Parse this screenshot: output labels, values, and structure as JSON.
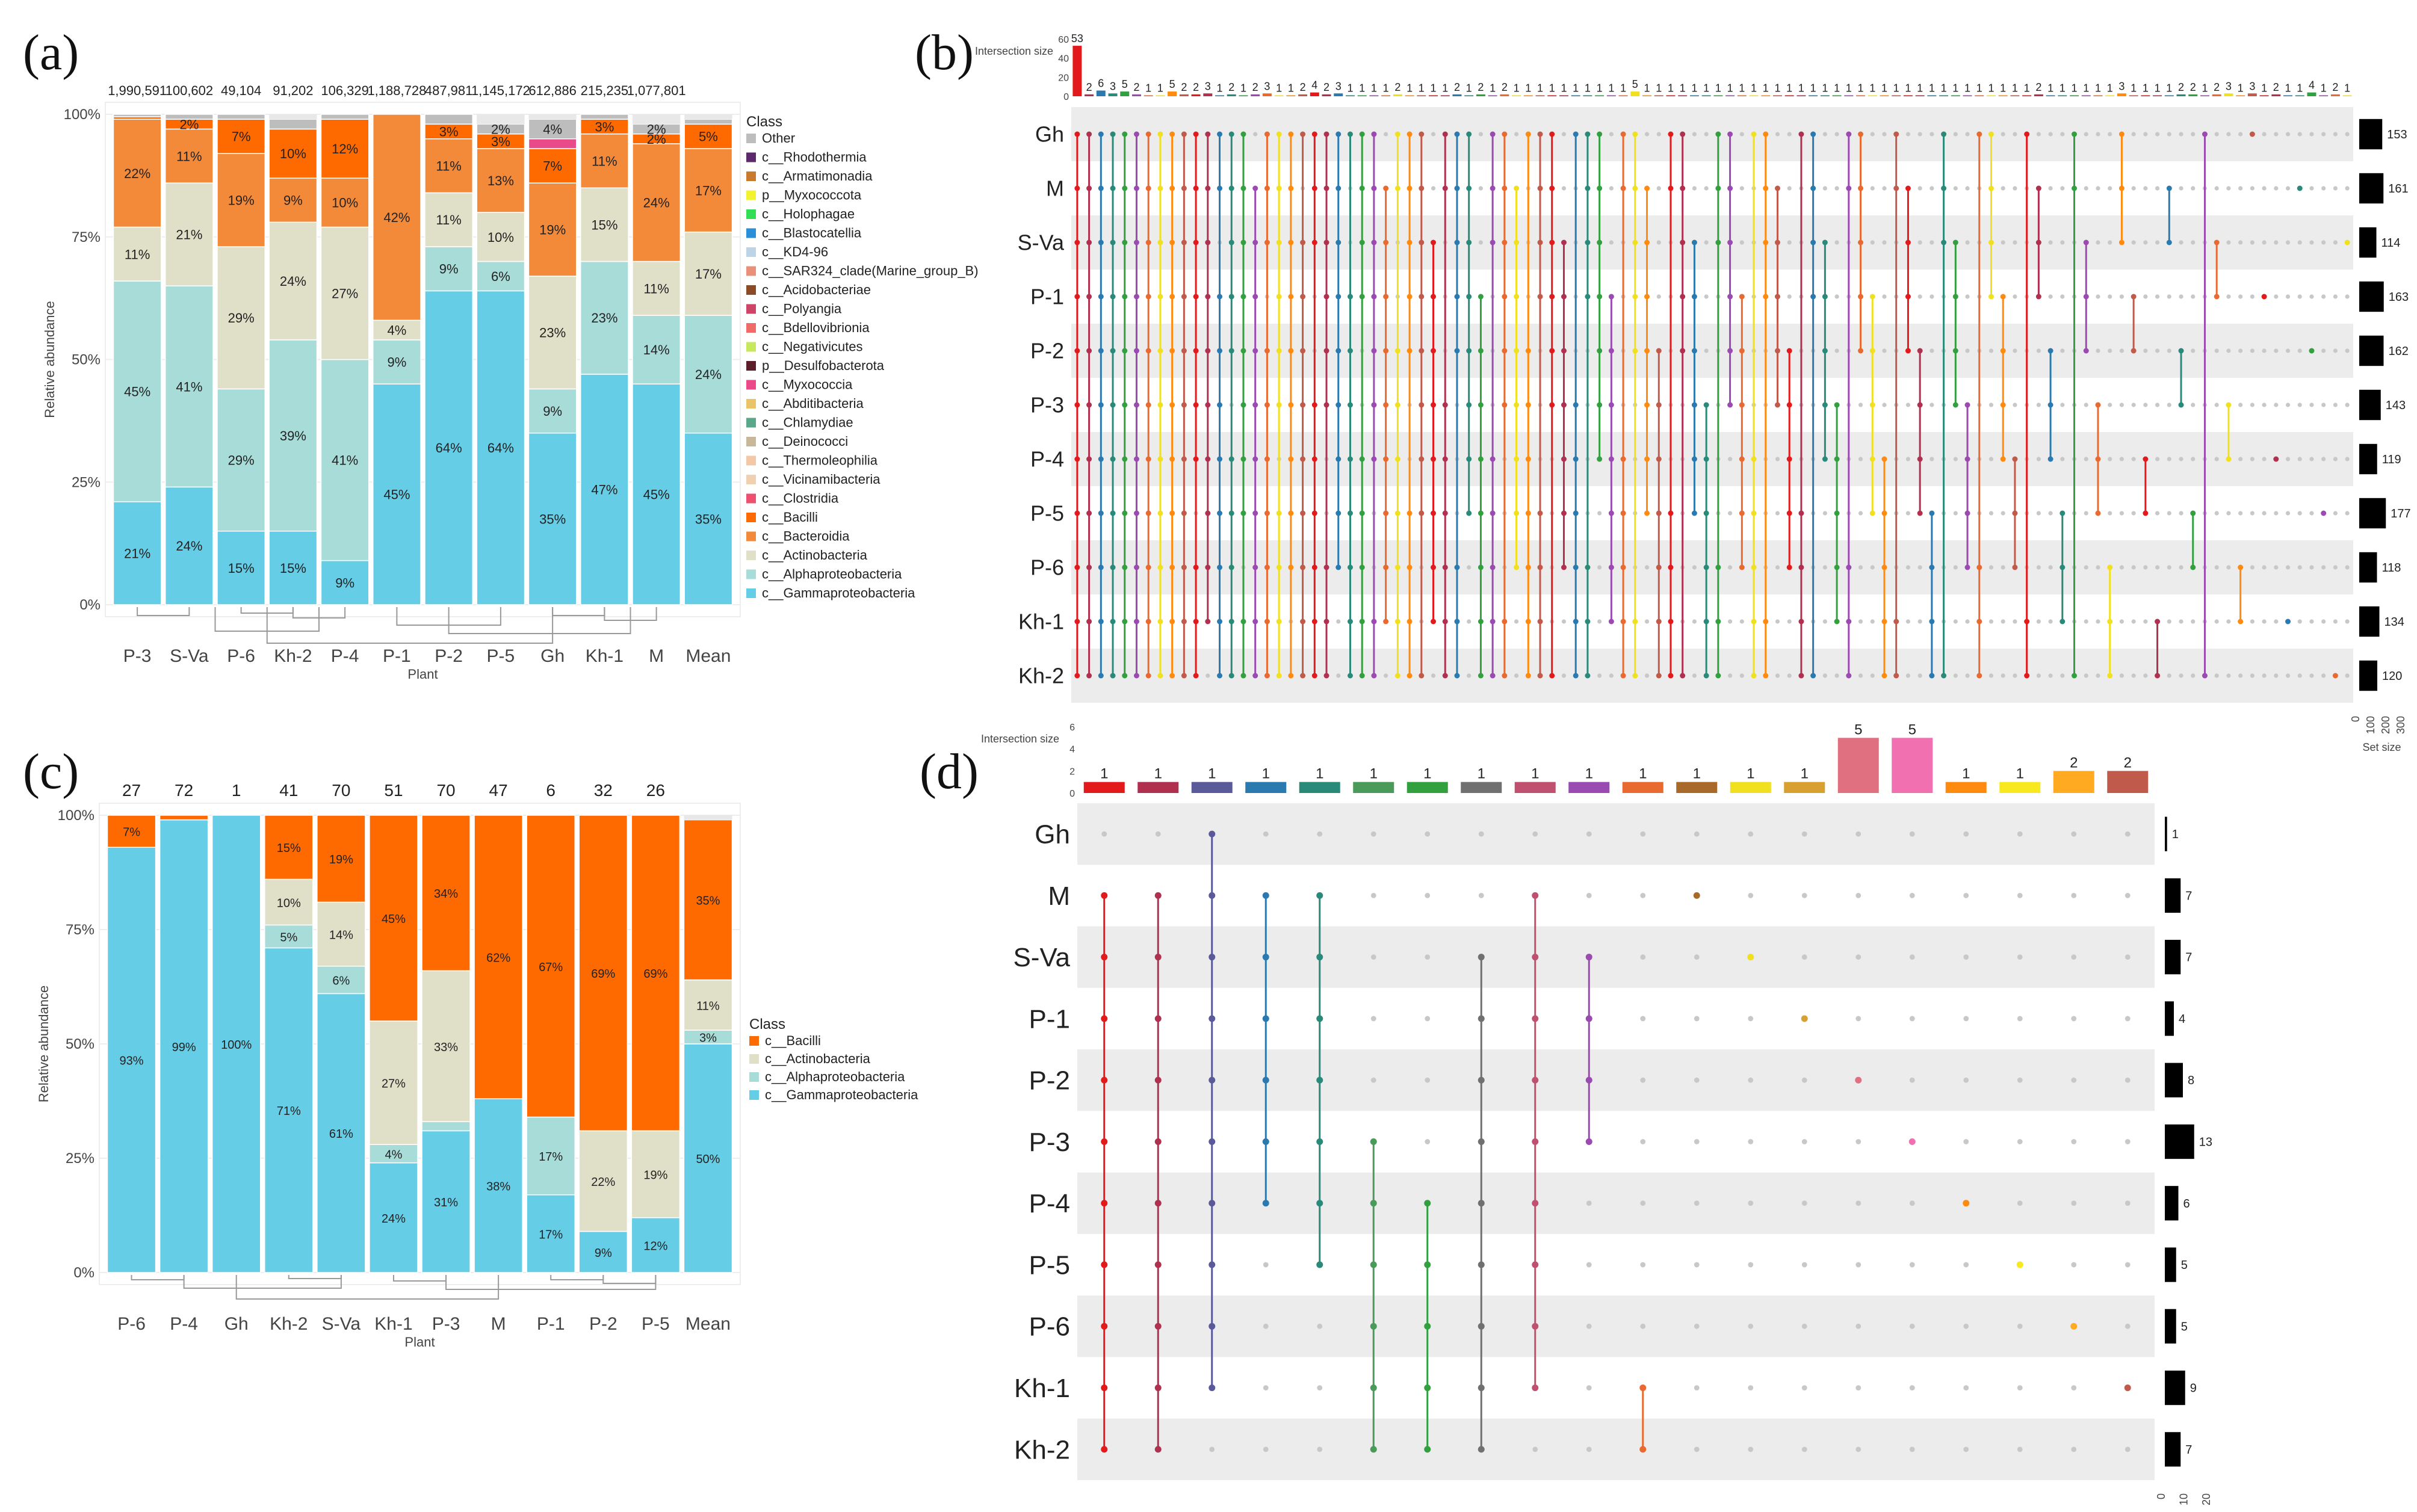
{
  "panel_labels": [
    "(a)",
    "(b)",
    "(c)",
    "(d)"
  ],
  "chart_data": [
    {
      "panel": "(a)",
      "type": "stacked-bar",
      "xlabel": "Plant",
      "ylabel": "Relative abundance",
      "y_ticks": [
        "0%",
        "25%",
        "50%",
        "75%",
        "100%"
      ],
      "legend_title": "Class",
      "legend": [
        {
          "name": "Other",
          "color": "#bdbdbd"
        },
        {
          "name": "c__Rhodothermia",
          "color": "#5a2a6b"
        },
        {
          "name": "c__Armatimonadia",
          "color": "#c87a2e"
        },
        {
          "name": "p__Myxococcota",
          "color": "#f2f230"
        },
        {
          "name": "c__Holophagae",
          "color": "#33dd55"
        },
        {
          "name": "c__Blastocatellia",
          "color": "#2b8ed6"
        },
        {
          "name": "c__KD4-96",
          "color": "#bcd4e6"
        },
        {
          "name": "c__SAR324_clade(Marine_group_B)",
          "color": "#e8907a"
        },
        {
          "name": "c__Acidobacteriae",
          "color": "#8b4a2a"
        },
        {
          "name": "c__Polyangia",
          "color": "#cc4466"
        },
        {
          "name": "c__Bdellovibrionia",
          "color": "#f06a6a"
        },
        {
          "name": "c__Negativicutes",
          "color": "#c6e85a"
        },
        {
          "name": "p__Desulfobacterota",
          "color": "#5a1f2a"
        },
        {
          "name": "c__Myxococcia",
          "color": "#e84a8a"
        },
        {
          "name": "c__Abditibacteria",
          "color": "#e8c56a"
        },
        {
          "name": "c__Chlamydiae",
          "color": "#5aa88a"
        },
        {
          "name": "c__Deinococci",
          "color": "#c8b89a"
        },
        {
          "name": "c__Thermoleophilia",
          "color": "#f2c8a8"
        },
        {
          "name": "c__Vicinamibacteria",
          "color": "#f0d0b0"
        },
        {
          "name": "c__Clostridia",
          "color": "#f05070"
        },
        {
          "name": "c__Bacilli",
          "color": "#ff6a00"
        },
        {
          "name": "c__Bacteroidia",
          "color": "#f28a3a"
        },
        {
          "name": "c__Actinobacteria",
          "color": "#e0e0c8"
        },
        {
          "name": "c__Alphaproteobacteria",
          "color": "#a8dcd8"
        },
        {
          "name": "c__Gammaproteobacteria",
          "color": "#66cde6"
        }
      ],
      "categories": [
        "P-3",
        "S-Va",
        "P-6",
        "Kh-2",
        "P-4",
        "P-1",
        "P-2",
        "P-5",
        "Gh",
        "Kh-1",
        "M",
        "Mean"
      ],
      "top_counts": [
        "1,990,591",
        "100,602",
        "49,104",
        "91,202",
        "106,329",
        "1,188,728",
        "487,981",
        "1,145,172",
        "612,886",
        "215,235",
        "1,077,801",
        ""
      ],
      "series": [
        {
          "name": "c__Gammaproteobacteria",
          "values": [
            21,
            24,
            15,
            15,
            9,
            45,
            64,
            64,
            35,
            47,
            45,
            35
          ],
          "labels": [
            "21%",
            "24%",
            "15%",
            "15%",
            "9%",
            "45%",
            "64%",
            "64%",
            "35%",
            "47%",
            "45%",
            "35%"
          ]
        },
        {
          "name": "c__Alphaproteobacteria",
          "values": [
            45,
            41,
            29,
            39,
            41,
            9,
            9,
            6,
            9,
            23,
            14,
            24
          ],
          "labels": [
            "45%",
            "41%",
            "29%",
            "39%",
            "41%",
            "9%",
            "9%",
            "6%",
            "9%",
            "23%",
            "14%",
            "24%"
          ]
        },
        {
          "name": "c__Actinobacteria",
          "values": [
            11,
            21,
            29,
            24,
            27,
            4,
            11,
            10,
            23,
            15,
            11,
            17
          ],
          "labels": [
            "11%",
            "21%",
            "29%",
            "24%",
            "27%",
            "4%",
            "11%",
            "10%",
            "23%",
            "15%",
            "11%",
            "17%"
          ]
        },
        {
          "name": "c__Bacteroidia",
          "values": [
            22,
            11,
            19,
            9,
            10,
            42,
            11,
            13,
            19,
            11,
            24,
            17
          ],
          "labels": [
            "22%",
            "11%",
            "19%",
            "9%",
            "10%",
            "42%",
            "11%",
            "13%",
            "19%",
            "11%",
            "24%",
            "17%"
          ]
        },
        {
          "name": "c__Bacilli",
          "values": [
            0.5,
            2,
            7,
            10,
            12,
            0.5,
            3,
            3,
            7,
            3,
            2,
            5
          ],
          "labels": [
            "",
            "2%",
            "7%",
            "10%",
            "12%",
            "",
            "3%",
            "3%",
            "7%",
            "3%",
            "2%",
            "5%"
          ]
        },
        {
          "name": "c__Myxococcia",
          "values": [
            0,
            0,
            0,
            0,
            0,
            0,
            0,
            0,
            2,
            0,
            0,
            0
          ],
          "labels": [
            "",
            "",
            "",
            "",
            "",
            "",
            "",
            "",
            "",
            "",
            "",
            ""
          ]
        },
        {
          "name": "Other",
          "values": [
            0.5,
            1,
            1,
            2,
            1,
            0.5,
            2,
            2,
            4,
            1,
            2,
            1
          ],
          "labels": [
            "",
            "",
            "",
            "",
            "",
            "",
            "",
            "2%",
            "4%",
            "",
            "2%",
            ""
          ]
        }
      ]
    },
    {
      "panel": "(b)",
      "type": "upset",
      "sets": [
        "Gh",
        "M",
        "S-Va",
        "P-1",
        "P-2",
        "P-3",
        "P-4",
        "P-5",
        "P-6",
        "Kh-1",
        "Kh-2"
      ],
      "set_sizes": [
        153,
        161,
        114,
        163,
        162,
        143,
        119,
        177,
        118,
        134,
        120
      ],
      "set_size_axis_ticks": [
        "0",
        "100",
        "200",
        "300"
      ],
      "set_size_label": "Set size",
      "intersection_axis_label": "Intersection size",
      "intersection_axis_ticks": [
        "0",
        "20",
        "40",
        "60"
      ],
      "intersection_sizes": [
        53,
        2,
        6,
        3,
        5,
        2,
        1,
        1,
        5,
        2,
        2,
        3,
        1,
        2,
        1,
        2,
        3,
        1,
        1,
        2,
        4,
        2,
        3,
        1,
        1,
        1,
        1,
        2,
        1,
        1,
        1,
        1,
        2,
        1,
        2,
        1,
        2,
        1,
        1,
        1,
        1,
        1,
        1,
        1,
        1,
        1,
        1,
        5,
        1,
        1,
        1,
        1,
        1,
        1,
        1,
        1,
        1,
        1,
        1,
        1,
        1,
        1,
        1,
        1,
        1,
        1,
        1,
        1,
        1,
        1,
        1,
        1,
        1,
        1,
        1,
        1,
        1,
        1,
        1,
        1,
        1,
        2,
        1,
        1,
        1,
        1,
        1,
        1,
        3,
        1,
        1,
        1,
        1,
        2,
        2,
        1,
        2,
        3,
        1,
        3,
        1,
        2,
        1,
        1,
        4,
        1,
        2,
        1
      ]
    },
    {
      "panel": "(c)",
      "type": "stacked-bar",
      "xlabel": "Plant",
      "ylabel": "Relative abundance",
      "y_ticks": [
        "0%",
        "25%",
        "50%",
        "75%",
        "100%"
      ],
      "legend_title": "Class",
      "legend": [
        {
          "name": "c__Bacilli",
          "color": "#ff6a00"
        },
        {
          "name": "c__Actinobacteria",
          "color": "#e0e0c8"
        },
        {
          "name": "c__Alphaproteobacteria",
          "color": "#a8dcd8"
        },
        {
          "name": "c__Gammaproteobacteria",
          "color": "#66cde6"
        }
      ],
      "categories": [
        "P-6",
        "P-4",
        "Gh",
        "Kh-2",
        "S-Va",
        "Kh-1",
        "P-3",
        "M",
        "P-1",
        "P-2",
        "P-5",
        "Mean"
      ],
      "top_counts": [
        "27",
        "72",
        "1",
        "41",
        "70",
        "51",
        "70",
        "47",
        "6",
        "32",
        "26",
        ""
      ],
      "series": [
        {
          "name": "c__Gammaproteobacteria",
          "values": [
            93,
            99,
            100,
            71,
            61,
            24,
            31,
            38,
            17,
            9,
            12,
            50
          ],
          "labels": [
            "93%",
            "99%",
            "100%",
            "71%",
            "61%",
            "24%",
            "31%",
            "38%",
            "17%",
            "9%",
            "12%",
            "50%"
          ]
        },
        {
          "name": "c__Alphaproteobacteria",
          "values": [
            0,
            0,
            0,
            5,
            6,
            4,
            2,
            0,
            17,
            0,
            0,
            3
          ],
          "labels": [
            "",
            "",
            "",
            "5%",
            "6%",
            "4%",
            "",
            "",
            "17%",
            "",
            "",
            "3%"
          ]
        },
        {
          "name": "c__Actinobacteria",
          "values": [
            0,
            0,
            0,
            10,
            14,
            27,
            33,
            0,
            0,
            22,
            19,
            11
          ],
          "labels": [
            "",
            "",
            "",
            "10%",
            "14%",
            "27%",
            "33%",
            "",
            "",
            "22%",
            "19%",
            "11%"
          ]
        },
        {
          "name": "c__Bacilli",
          "values": [
            7,
            1,
            0,
            15,
            19,
            45,
            34,
            62,
            67,
            69,
            69,
            35
          ],
          "labels": [
            "7%",
            "",
            "",
            "15%",
            "19%",
            "45%",
            "34%",
            "62%",
            "67%",
            "69%",
            "69%",
            "35%"
          ]
        }
      ]
    },
    {
      "panel": "(d)",
      "type": "upset",
      "sets": [
        "Gh",
        "M",
        "S-Va",
        "P-1",
        "P-2",
        "P-3",
        "P-4",
        "P-5",
        "P-6",
        "Kh-1",
        "Kh-2"
      ],
      "set_sizes": [
        1,
        7,
        7,
        4,
        8,
        13,
        6,
        5,
        5,
        9,
        7
      ],
      "set_size_axis_ticks": [
        "0",
        "10",
        "20"
      ],
      "set_size_label": "Set size",
      "intersection_axis_label": "Intersection size",
      "intersection_axis_ticks": [
        "0",
        "2",
        "4",
        "6"
      ],
      "intersection_sizes": [
        1,
        1,
        1,
        1,
        1,
        1,
        1,
        1,
        1,
        1,
        1,
        1,
        1,
        1,
        5,
        5,
        1,
        1,
        2,
        2
      ],
      "intersection_colors": [
        "#e31a1c",
        "#b03050",
        "#5a5a9a",
        "#2a7ab0",
        "#2a8a7a",
        "#4a9a5a",
        "#33a040",
        "#707070",
        "#c05070",
        "#9a4ab0",
        "#e86a30",
        "#a86a2a",
        "#f0e020",
        "#d8a030",
        "#e07080",
        "#f070b0",
        "#ff8a10",
        "#f8e820",
        "#ffaa20",
        "#c05a4a"
      ],
      "intersection_members": [
        [
          "M",
          "S-Va",
          "P-1",
          "P-2",
          "P-3",
          "P-4",
          "P-5",
          "P-6",
          "Kh-1",
          "Kh-2"
        ],
        [
          "M",
          "S-Va",
          "P-1",
          "P-2",
          "P-3",
          "P-4",
          "P-5",
          "P-6",
          "Kh-1",
          "Kh-2"
        ],
        [
          "Gh",
          "M",
          "S-Va",
          "P-1",
          "P-2",
          "P-3",
          "P-4",
          "P-5",
          "P-6",
          "Kh-1"
        ],
        [
          "M",
          "S-Va",
          "P-1",
          "P-2",
          "P-3",
          "P-4"
        ],
        [
          "M",
          "S-Va",
          "P-1",
          "P-2",
          "P-3",
          "P-4",
          "P-5"
        ],
        [
          "P-3",
          "P-4",
          "P-5",
          "P-6",
          "Kh-1",
          "Kh-2"
        ],
        [
          "P-4",
          "P-5",
          "P-6",
          "Kh-1",
          "Kh-2"
        ],
        [
          "S-Va",
          "P-1",
          "P-2",
          "P-3",
          "P-4",
          "P-5",
          "P-6",
          "Kh-1",
          "Kh-2"
        ],
        [
          "M",
          "S-Va",
          "P-1",
          "P-2",
          "P-3",
          "P-4",
          "P-5",
          "P-6",
          "Kh-1"
        ],
        [
          "S-Va",
          "P-1",
          "P-2",
          "P-3"
        ],
        [
          "Kh-1",
          "Kh-2"
        ],
        [
          "M"
        ],
        [
          "S-Va"
        ],
        [
          "P-1"
        ],
        [
          "P-2"
        ],
        [
          "P-3"
        ],
        [
          "P-4"
        ],
        [
          "P-5"
        ],
        [
          "P-6"
        ],
        [
          "Kh-1"
        ]
      ]
    }
  ]
}
